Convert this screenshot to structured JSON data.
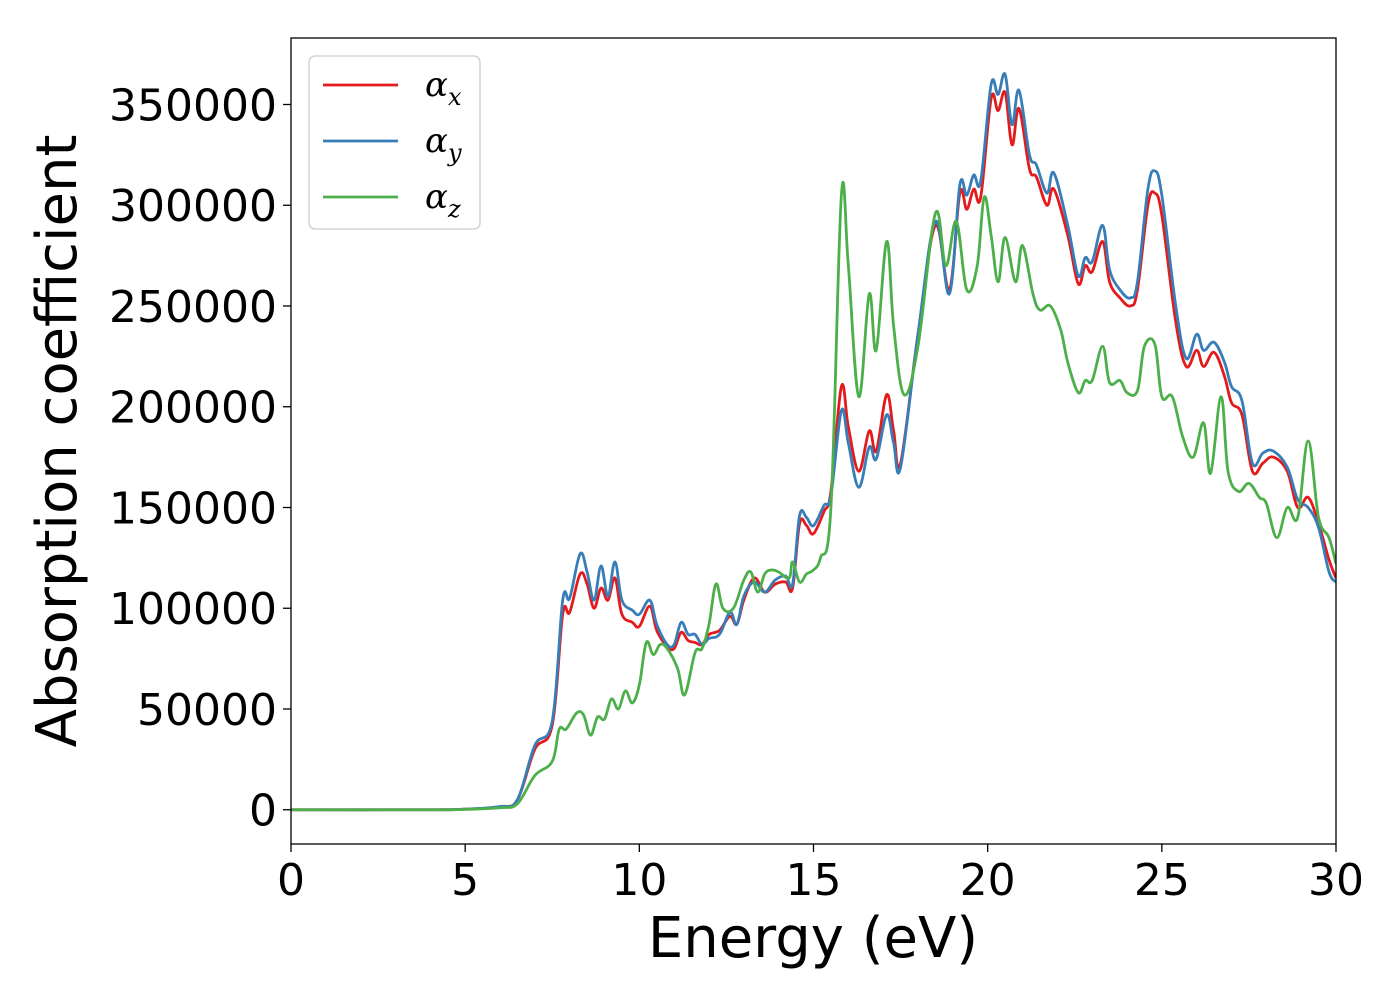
{
  "chart_data": {
    "type": "line",
    "title": "",
    "xlabel": "Energy (eV)",
    "ylabel": "Absorption coefficient",
    "xlim": [
      0,
      30
    ],
    "ylim": [
      -17000,
      383000
    ],
    "xticks": [
      0,
      5,
      10,
      15,
      20,
      25,
      30
    ],
    "yticks": [
      0,
      50000,
      100000,
      150000,
      200000,
      250000,
      300000,
      350000
    ],
    "grid": false,
    "legend_position": "top-left",
    "series": [
      {
        "name": "α",
        "subscript": "x",
        "color": "#e41a1c",
        "points": [
          [
            0,
            0
          ],
          [
            4,
            0
          ],
          [
            5,
            300
          ],
          [
            6,
            1500
          ],
          [
            6.5,
            5000
          ],
          [
            7,
            30000
          ],
          [
            7.5,
            42000
          ],
          [
            7.8,
            97000
          ],
          [
            8.0,
            98000
          ],
          [
            8.3,
            117000
          ],
          [
            8.5,
            112000
          ],
          [
            8.7,
            100000
          ],
          [
            8.9,
            110000
          ],
          [
            9.1,
            104000
          ],
          [
            9.3,
            115000
          ],
          [
            9.5,
            97000
          ],
          [
            9.8,
            93000
          ],
          [
            10.0,
            91000
          ],
          [
            10.3,
            101000
          ],
          [
            10.5,
            89000
          ],
          [
            10.8,
            81000
          ],
          [
            11.0,
            80000
          ],
          [
            11.2,
            88000
          ],
          [
            11.4,
            84000
          ],
          [
            11.6,
            83000
          ],
          [
            11.8,
            82000
          ],
          [
            12.0,
            87000
          ],
          [
            12.3,
            89000
          ],
          [
            12.6,
            96000
          ],
          [
            12.8,
            92000
          ],
          [
            13.0,
            104000
          ],
          [
            13.3,
            115000
          ],
          [
            13.6,
            108000
          ],
          [
            13.9,
            112000
          ],
          [
            14.2,
            113000
          ],
          [
            14.4,
            110000
          ],
          [
            14.6,
            142000
          ],
          [
            14.8,
            141000
          ],
          [
            15.0,
            137000
          ],
          [
            15.3,
            148000
          ],
          [
            15.5,
            158000
          ],
          [
            15.8,
            210000
          ],
          [
            16.0,
            190000
          ],
          [
            16.3,
            168000
          ],
          [
            16.6,
            188000
          ],
          [
            16.8,
            178000
          ],
          [
            17.1,
            206000
          ],
          [
            17.3,
            188000
          ],
          [
            17.5,
            172000
          ],
          [
            18.0,
            236000
          ],
          [
            18.5,
            290000
          ],
          [
            18.9,
            258000
          ],
          [
            19.2,
            306000
          ],
          [
            19.4,
            298000
          ],
          [
            19.6,
            308000
          ],
          [
            19.8,
            304000
          ],
          [
            20.1,
            353000
          ],
          [
            20.3,
            347000
          ],
          [
            20.5,
            356000
          ],
          [
            20.7,
            330000
          ],
          [
            20.9,
            348000
          ],
          [
            21.2,
            318000
          ],
          [
            21.4,
            314000
          ],
          [
            21.7,
            300000
          ],
          [
            21.9,
            308000
          ],
          [
            22.3,
            285000
          ],
          [
            22.6,
            261000
          ],
          [
            22.8,
            270000
          ],
          [
            23.0,
            267000
          ],
          [
            23.3,
            282000
          ],
          [
            23.5,
            262000
          ],
          [
            23.8,
            254000
          ],
          [
            24.1,
            250000
          ],
          [
            24.3,
            258000
          ],
          [
            24.6,
            300000
          ],
          [
            24.8,
            306000
          ],
          [
            25.0,
            295000
          ],
          [
            25.4,
            242000
          ],
          [
            25.7,
            220000
          ],
          [
            26.0,
            228000
          ],
          [
            26.2,
            220000
          ],
          [
            26.5,
            227000
          ],
          [
            26.8,
            215000
          ],
          [
            27.0,
            202000
          ],
          [
            27.3,
            196000
          ],
          [
            27.6,
            168000
          ],
          [
            27.9,
            172000
          ],
          [
            28.2,
            175000
          ],
          [
            28.6,
            168000
          ],
          [
            28.9,
            150000
          ],
          [
            29.2,
            155000
          ],
          [
            29.5,
            142000
          ],
          [
            29.8,
            124000
          ],
          [
            30,
            115000
          ]
        ]
      },
      {
        "name": "α",
        "subscript": "y",
        "color": "#377eb8",
        "points": [
          [
            0,
            0
          ],
          [
            4,
            0
          ],
          [
            5,
            300
          ],
          [
            6,
            1600
          ],
          [
            6.5,
            5000
          ],
          [
            7,
            32000
          ],
          [
            7.5,
            44000
          ],
          [
            7.8,
            104000
          ],
          [
            8.0,
            105000
          ],
          [
            8.3,
            127000
          ],
          [
            8.5,
            118000
          ],
          [
            8.7,
            104000
          ],
          [
            8.9,
            121000
          ],
          [
            9.1,
            106000
          ],
          [
            9.3,
            123000
          ],
          [
            9.5,
            104000
          ],
          [
            9.8,
            99000
          ],
          [
            10.0,
            97000
          ],
          [
            10.3,
            104000
          ],
          [
            10.5,
            92000
          ],
          [
            10.8,
            82000
          ],
          [
            11.0,
            82000
          ],
          [
            11.2,
            93000
          ],
          [
            11.4,
            87000
          ],
          [
            11.6,
            87000
          ],
          [
            11.8,
            82000
          ],
          [
            12.0,
            85000
          ],
          [
            12.3,
            87000
          ],
          [
            12.6,
            98000
          ],
          [
            12.8,
            92000
          ],
          [
            13.0,
            106000
          ],
          [
            13.3,
            113000
          ],
          [
            13.6,
            108000
          ],
          [
            13.9,
            114000
          ],
          [
            14.2,
            116000
          ],
          [
            14.4,
            112000
          ],
          [
            14.6,
            146000
          ],
          [
            14.8,
            145000
          ],
          [
            15.0,
            141000
          ],
          [
            15.3,
            151000
          ],
          [
            15.5,
            156000
          ],
          [
            15.8,
            198000
          ],
          [
            16.0,
            182000
          ],
          [
            16.3,
            160000
          ],
          [
            16.6,
            180000
          ],
          [
            16.8,
            174000
          ],
          [
            17.1,
            196000
          ],
          [
            17.3,
            182000
          ],
          [
            17.5,
            170000
          ],
          [
            18.0,
            236000
          ],
          [
            18.5,
            292000
          ],
          [
            18.9,
            256000
          ],
          [
            19.2,
            310000
          ],
          [
            19.4,
            305000
          ],
          [
            19.6,
            315000
          ],
          [
            19.8,
            312000
          ],
          [
            20.1,
            360000
          ],
          [
            20.3,
            355000
          ],
          [
            20.5,
            365000
          ],
          [
            20.7,
            340000
          ],
          [
            20.9,
            357000
          ],
          [
            21.2,
            325000
          ],
          [
            21.4,
            320000
          ],
          [
            21.7,
            306000
          ],
          [
            21.9,
            316000
          ],
          [
            22.3,
            290000
          ],
          [
            22.6,
            265000
          ],
          [
            22.8,
            274000
          ],
          [
            23.0,
            272000
          ],
          [
            23.3,
            290000
          ],
          [
            23.5,
            268000
          ],
          [
            23.8,
            258000
          ],
          [
            24.1,
            254000
          ],
          [
            24.3,
            262000
          ],
          [
            24.6,
            308000
          ],
          [
            24.8,
            317000
          ],
          [
            25.0,
            305000
          ],
          [
            25.4,
            250000
          ],
          [
            25.7,
            224000
          ],
          [
            26.0,
            236000
          ],
          [
            26.2,
            228000
          ],
          [
            26.5,
            232000
          ],
          [
            26.8,
            222000
          ],
          [
            27.0,
            210000
          ],
          [
            27.3,
            203000
          ],
          [
            27.6,
            172000
          ],
          [
            27.9,
            177000
          ],
          [
            28.2,
            178000
          ],
          [
            28.6,
            170000
          ],
          [
            28.9,
            154000
          ],
          [
            29.2,
            150000
          ],
          [
            29.5,
            140000
          ],
          [
            29.8,
            118000
          ],
          [
            30,
            113000
          ]
        ]
      },
      {
        "name": "α",
        "subscript": "z",
        "color": "#4daf4a",
        "points": [
          [
            0,
            0
          ],
          [
            4,
            0
          ],
          [
            5,
            200
          ],
          [
            6,
            1000
          ],
          [
            6.5,
            3000
          ],
          [
            7,
            17000
          ],
          [
            7.5,
            24000
          ],
          [
            7.7,
            40000
          ],
          [
            7.9,
            40000
          ],
          [
            8.2,
            48000
          ],
          [
            8.4,
            47000
          ],
          [
            8.6,
            37000
          ],
          [
            8.8,
            46000
          ],
          [
            9.0,
            45000
          ],
          [
            9.2,
            55000
          ],
          [
            9.4,
            50000
          ],
          [
            9.6,
            59000
          ],
          [
            9.8,
            53000
          ],
          [
            10.0,
            62000
          ],
          [
            10.2,
            83000
          ],
          [
            10.4,
            77000
          ],
          [
            10.6,
            82000
          ],
          [
            10.8,
            80000
          ],
          [
            11.1,
            70000
          ],
          [
            11.3,
            57000
          ],
          [
            11.6,
            78000
          ],
          [
            11.8,
            80000
          ],
          [
            12.0,
            92000
          ],
          [
            12.2,
            112000
          ],
          [
            12.4,
            100000
          ],
          [
            12.7,
            100000
          ],
          [
            13.0,
            114000
          ],
          [
            13.2,
            118000
          ],
          [
            13.4,
            108000
          ],
          [
            13.6,
            117000
          ],
          [
            13.8,
            119000
          ],
          [
            14.0,
            118000
          ],
          [
            14.3,
            115000
          ],
          [
            14.4,
            123000
          ],
          [
            14.6,
            113000
          ],
          [
            14.8,
            117000
          ],
          [
            15.0,
            119000
          ],
          [
            15.2,
            125000
          ],
          [
            15.5,
            150000
          ],
          [
            15.8,
            305000
          ],
          [
            16.0,
            270000
          ],
          [
            16.3,
            205000
          ],
          [
            16.6,
            256000
          ],
          [
            16.8,
            228000
          ],
          [
            17.1,
            282000
          ],
          [
            17.3,
            240000
          ],
          [
            17.6,
            206000
          ],
          [
            18.0,
            230000
          ],
          [
            18.5,
            296000
          ],
          [
            18.8,
            270000
          ],
          [
            19.1,
            292000
          ],
          [
            19.4,
            258000
          ],
          [
            19.7,
            270000
          ],
          [
            19.9,
            304000
          ],
          [
            20.1,
            285000
          ],
          [
            20.3,
            262000
          ],
          [
            20.5,
            284000
          ],
          [
            20.8,
            262000
          ],
          [
            21.0,
            280000
          ],
          [
            21.3,
            256000
          ],
          [
            21.5,
            248000
          ],
          [
            21.8,
            250000
          ],
          [
            22.1,
            238000
          ],
          [
            22.3,
            222000
          ],
          [
            22.6,
            207000
          ],
          [
            22.8,
            213000
          ],
          [
            23.0,
            213000
          ],
          [
            23.3,
            230000
          ],
          [
            23.5,
            212000
          ],
          [
            23.8,
            213000
          ],
          [
            24.0,
            207000
          ],
          [
            24.3,
            208000
          ],
          [
            24.5,
            230000
          ],
          [
            24.8,
            231000
          ],
          [
            25.0,
            205000
          ],
          [
            25.3,
            205000
          ],
          [
            25.6,
            185000
          ],
          [
            25.9,
            175000
          ],
          [
            26.2,
            192000
          ],
          [
            26.4,
            167000
          ],
          [
            26.7,
            205000
          ],
          [
            26.9,
            168000
          ],
          [
            27.2,
            158000
          ],
          [
            27.5,
            162000
          ],
          [
            27.8,
            155000
          ],
          [
            28.0,
            152000
          ],
          [
            28.3,
            135000
          ],
          [
            28.6,
            150000
          ],
          [
            28.9,
            145000
          ],
          [
            29.2,
            183000
          ],
          [
            29.5,
            145000
          ],
          [
            29.8,
            135000
          ],
          [
            30,
            122000
          ]
        ]
      }
    ]
  }
}
